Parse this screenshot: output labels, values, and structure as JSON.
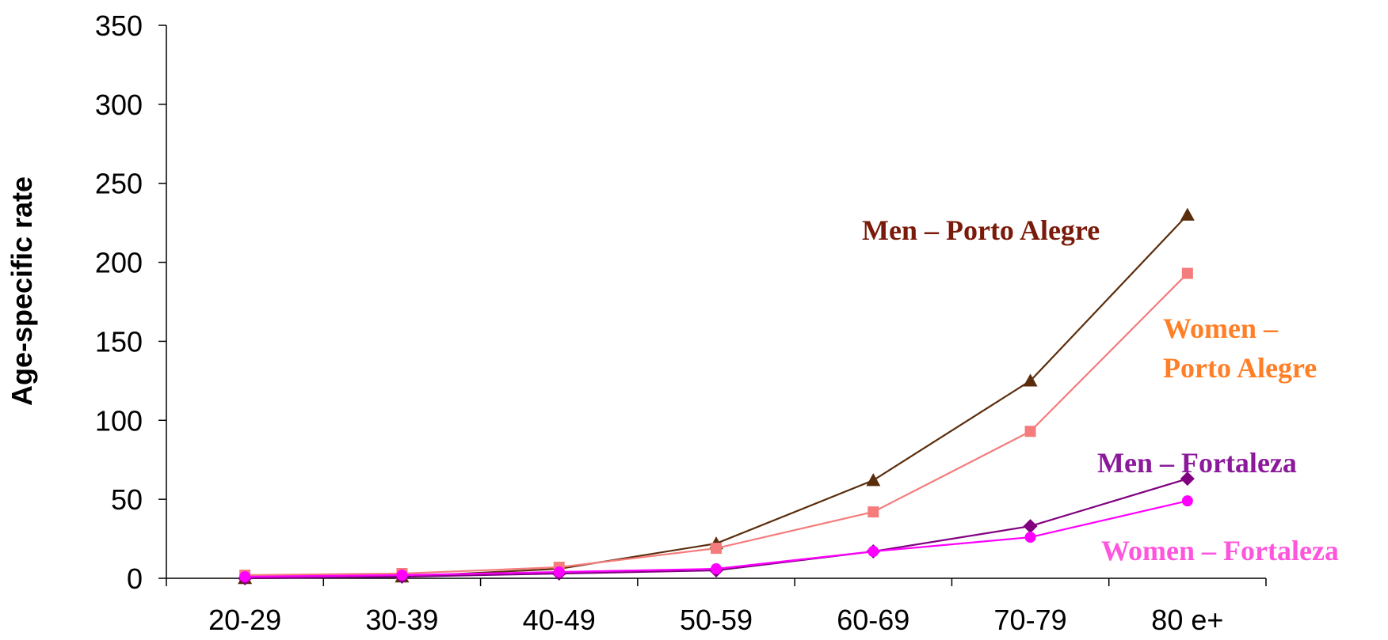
{
  "chart_data": {
    "type": "line",
    "title": "",
    "xlabel": "",
    "ylabel": "Age-specific rate",
    "categories": [
      "20-29",
      "30-39",
      "40-49",
      "50-59",
      "60-69",
      "70-79",
      "80 e+"
    ],
    "ylim": [
      0,
      350
    ],
    "yticks": [
      0,
      50,
      100,
      150,
      200,
      250,
      300,
      350
    ],
    "grid": false,
    "legend": "none (series labeled inline)",
    "series": [
      {
        "name": "Men – Porto Alegre",
        "label_lines": [
          "Men – Porto Alegre"
        ],
        "color": "#5a2d0c",
        "label_color": "#7a1a0a",
        "marker": "triangle",
        "values": [
          0,
          1,
          6,
          22,
          62,
          125,
          230
        ]
      },
      {
        "name": "Women – Porto Alegre",
        "label_lines": [
          "Women –",
          "Porto Alegre"
        ],
        "color": "#f47c7c",
        "label_color": "#ff7f27",
        "marker": "square",
        "values": [
          2,
          3,
          7,
          19,
          42,
          93,
          193
        ]
      },
      {
        "name": "Men – Fortaleza",
        "label_lines": [
          "Men – Fortaleza"
        ],
        "color": "#800080",
        "label_color": "#8b1a9b",
        "marker": "diamond",
        "values": [
          0,
          1,
          3,
          5,
          17,
          33,
          63
        ]
      },
      {
        "name": "Women – Fortaleza",
        "label_lines": [
          "Women – Fortaleza"
        ],
        "color": "#ff00ff",
        "label_color": "#ff55dd",
        "marker": "circle",
        "values": [
          1,
          2,
          4,
          6,
          17,
          26,
          49
        ]
      }
    ]
  }
}
